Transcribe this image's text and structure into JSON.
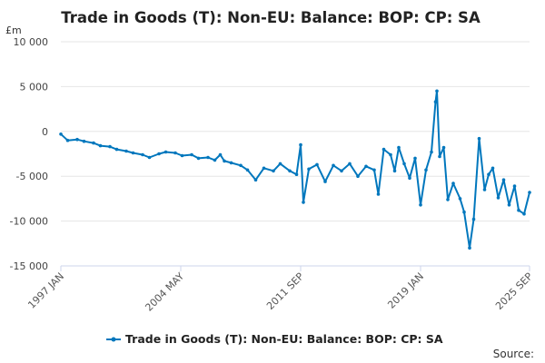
{
  "chart_data": {
    "type": "line",
    "title": "Trade in Goods (T): Non-EU: Balance: BOP: CP: SA",
    "unit_label": "£m",
    "ylim": [
      -15000,
      10000
    ],
    "y_ticks": [
      10000,
      5000,
      0,
      -5000,
      -10000,
      -15000
    ],
    "y_tick_labels": [
      "10 000",
      "5 000",
      "0",
      "-5 000",
      "-10 000",
      "-15 000"
    ],
    "x_range": [
      "1997-01",
      "2025-09"
    ],
    "x_ticks": [
      "1997 JAN",
      "2004 MAY",
      "2011 SEP",
      "2019 JAN",
      "2025 SEP"
    ],
    "x_tick_dates": [
      "1997-01",
      "2004-05",
      "2011-09",
      "2019-01",
      "2025-09"
    ],
    "grid": true,
    "legend_position": "bottom",
    "color": "#0077bd",
    "series": [
      {
        "name": "Trade in Goods (T): Non-EU: Balance: BOP: CP: SA",
        "points": [
          [
            "1997-01",
            -300
          ],
          [
            "1997-06",
            -1000
          ],
          [
            "1998-01",
            -900
          ],
          [
            "1998-06",
            -1100
          ],
          [
            "1999-01",
            -1300
          ],
          [
            "1999-06",
            -1600
          ],
          [
            "2000-01",
            -1700
          ],
          [
            "2000-06",
            -2000
          ],
          [
            "2001-01",
            -2200
          ],
          [
            "2001-06",
            -2400
          ],
          [
            "2002-01",
            -2600
          ],
          [
            "2002-06",
            -2900
          ],
          [
            "2003-01",
            -2500
          ],
          [
            "2003-06",
            -2300
          ],
          [
            "2004-01",
            -2400
          ],
          [
            "2004-06",
            -2700
          ],
          [
            "2005-01",
            -2600
          ],
          [
            "2005-06",
            -3000
          ],
          [
            "2006-01",
            -2900
          ],
          [
            "2006-06",
            -3200
          ],
          [
            "2006-10",
            -2600
          ],
          [
            "2007-01",
            -3300
          ],
          [
            "2007-06",
            -3500
          ],
          [
            "2008-01",
            -3800
          ],
          [
            "2008-06",
            -4300
          ],
          [
            "2008-12",
            -5400
          ],
          [
            "2009-06",
            -4100
          ],
          [
            "2010-01",
            -4400
          ],
          [
            "2010-06",
            -3600
          ],
          [
            "2011-01",
            -4400
          ],
          [
            "2011-06",
            -4800
          ],
          [
            "2011-09",
            -1500
          ],
          [
            "2011-11",
            -7900
          ],
          [
            "2012-03",
            -4200
          ],
          [
            "2012-09",
            -3700
          ],
          [
            "2013-03",
            -5600
          ],
          [
            "2013-09",
            -3800
          ],
          [
            "2014-03",
            -4400
          ],
          [
            "2014-09",
            -3600
          ],
          [
            "2015-03",
            -5000
          ],
          [
            "2015-09",
            -3900
          ],
          [
            "2016-03",
            -4300
          ],
          [
            "2016-06",
            -7000
          ],
          [
            "2016-10",
            -2000
          ],
          [
            "2017-03",
            -2600
          ],
          [
            "2017-06",
            -4400
          ],
          [
            "2017-09",
            -1800
          ],
          [
            "2018-01",
            -3600
          ],
          [
            "2018-05",
            -5200
          ],
          [
            "2018-09",
            -3000
          ],
          [
            "2019-01",
            -8200
          ],
          [
            "2019-05",
            -4300
          ],
          [
            "2019-09",
            -2300
          ],
          [
            "2019-12",
            3300
          ],
          [
            "2020-01",
            4500
          ],
          [
            "2020-03",
            -2800
          ],
          [
            "2020-06",
            -1800
          ],
          [
            "2020-09",
            -7600
          ],
          [
            "2021-01",
            -5800
          ],
          [
            "2021-06",
            -7500
          ],
          [
            "2021-09",
            -9000
          ],
          [
            "2022-01",
            -13000
          ],
          [
            "2022-04",
            -9800
          ],
          [
            "2022-08",
            -800
          ],
          [
            "2022-12",
            -6500
          ],
          [
            "2023-03",
            -4800
          ],
          [
            "2023-06",
            -4100
          ],
          [
            "2023-10",
            -7400
          ],
          [
            "2024-02",
            -5400
          ],
          [
            "2024-06",
            -8200
          ],
          [
            "2024-10",
            -6100
          ],
          [
            "2025-01",
            -8800
          ],
          [
            "2025-05",
            -9200
          ],
          [
            "2025-09",
            -6800
          ]
        ]
      }
    ]
  },
  "source_label": "Source:"
}
